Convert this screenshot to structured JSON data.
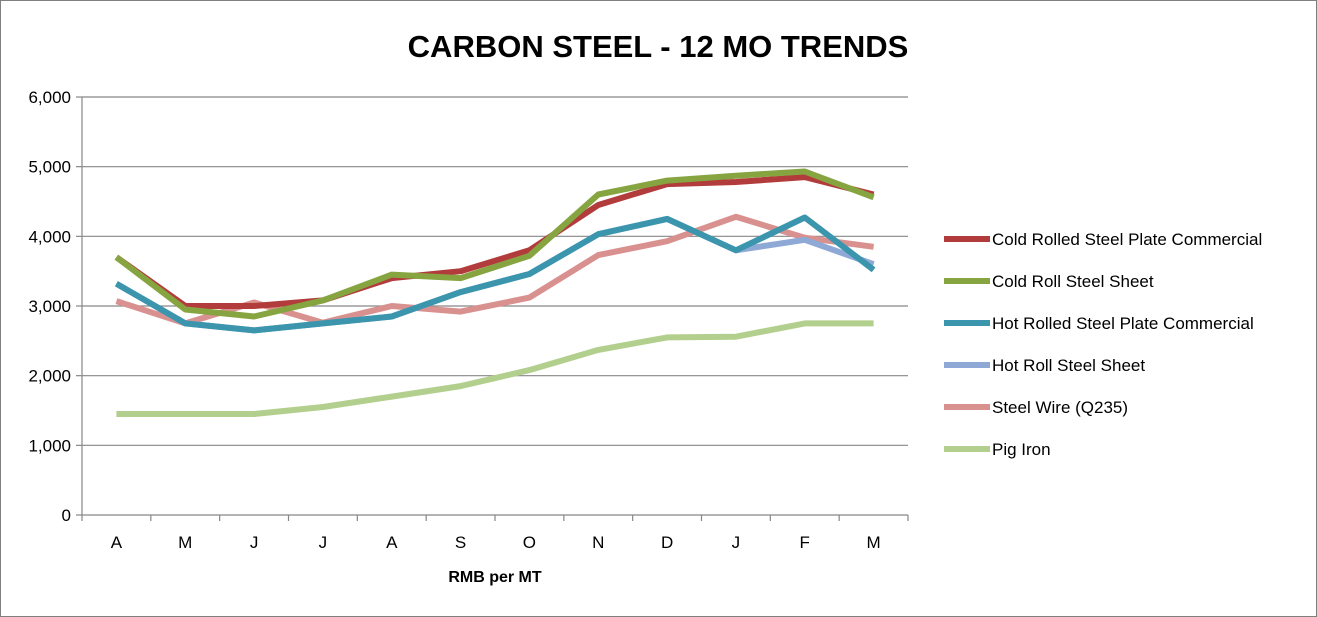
{
  "chart_data": {
    "type": "line",
    "title": "CARBON STEEL - 12 MO TRENDS",
    "xlabel": "RMB per MT",
    "ylabel": "",
    "categories": [
      "A",
      "M",
      "J",
      "J",
      "A",
      "S",
      "O",
      "N",
      "D",
      "J",
      "F",
      "M"
    ],
    "ylim": [
      0,
      6000
    ],
    "yticks": [
      0,
      1000,
      2000,
      3000,
      4000,
      5000,
      6000
    ],
    "ytick_labels": [
      "0",
      "1,000",
      "2,000",
      "3,000",
      "4,000",
      "5,000",
      "6,000"
    ],
    "grid": true,
    "legend_position": "right",
    "series": [
      {
        "name": "Cold Rolled Steel Plate Commercial",
        "color": "#b23c3c",
        "values": [
          3700,
          3000,
          3000,
          3080,
          3400,
          3500,
          3800,
          4450,
          4750,
          4780,
          4850,
          4600
        ]
      },
      {
        "name": "Cold Roll Steel Sheet",
        "color": "#86a540",
        "values": [
          3700,
          2950,
          2850,
          3080,
          3450,
          3400,
          3720,
          4600,
          4800,
          4870,
          4930,
          4560
        ]
      },
      {
        "name": "Hot Rolled Steel Plate Commercial",
        "color": "#3b95ad",
        "values": [
          3320,
          2750,
          2650,
          2750,
          2850,
          3200,
          3460,
          4030,
          4250,
          3800,
          4270,
          3520
        ]
      },
      {
        "name": "Hot Roll Steel Sheet",
        "color": "#8ea9d6",
        "values": [
          3320,
          2750,
          2650,
          2750,
          2850,
          3200,
          3460,
          4030,
          4250,
          3800,
          3950,
          3600
        ]
      },
      {
        "name": "Steel Wire (Q235)",
        "color": "#d99190",
        "values": [
          3070,
          2750,
          3050,
          2760,
          3000,
          2920,
          3120,
          3730,
          3930,
          4280,
          3980,
          3850
        ]
      },
      {
        "name": "Pig Iron",
        "color": "#b3cf8e",
        "values": [
          1450,
          1450,
          1450,
          1550,
          1700,
          1850,
          2080,
          2370,
          2550,
          2560,
          2750,
          2750
        ]
      }
    ]
  }
}
